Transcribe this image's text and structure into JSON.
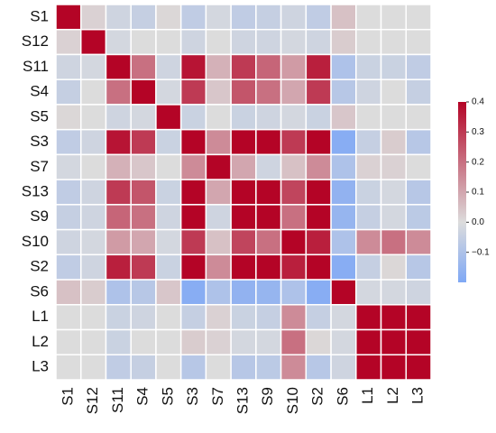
{
  "chart_data": {
    "type": "heatmap",
    "categories": [
      "S1",
      "S12",
      "S11",
      "S4",
      "S5",
      "S3",
      "S7",
      "S13",
      "S9",
      "S10",
      "S2",
      "S6",
      "L1",
      "L2",
      "L3"
    ],
    "values": [
      [
        1,
        0.02,
        -0.03,
        -0.05,
        0.01,
        -0.06,
        -0.02,
        -0.06,
        -0.05,
        -0.03,
        -0.06,
        0.05,
        0,
        0,
        0
      ],
      [
        0.02,
        1,
        -0.02,
        0,
        0,
        -0.03,
        0,
        -0.03,
        -0.03,
        -0.02,
        -0.03,
        0.03,
        0,
        0,
        0
      ],
      [
        -0.03,
        -0.02,
        1,
        0.2,
        -0.03,
        0.37,
        0.08,
        0.3,
        0.22,
        0.12,
        0.35,
        -0.1,
        -0.04,
        -0.04,
        -0.06
      ],
      [
        -0.05,
        0,
        0.2,
        1,
        -0.02,
        0.3,
        0.04,
        0.25,
        0.2,
        0.1,
        0.3,
        -0.08,
        -0.03,
        0,
        -0.05
      ],
      [
        0.01,
        0,
        -0.03,
        -0.02,
        1,
        -0.04,
        0,
        -0.04,
        -0.03,
        -0.02,
        -0.04,
        0.04,
        0,
        0,
        0
      ],
      [
        -0.06,
        -0.03,
        0.37,
        0.3,
        -0.04,
        1,
        0.15,
        0.5,
        0.5,
        0.3,
        0.5,
        -0.18,
        -0.05,
        0.03,
        -0.08
      ],
      [
        -0.02,
        0,
        0.08,
        0.04,
        0,
        0.15,
        1,
        0.1,
        -0.03,
        0.05,
        0.15,
        -0.1,
        0.02,
        0.02,
        0
      ],
      [
        -0.06,
        -0.03,
        0.3,
        0.25,
        -0.04,
        0.5,
        0.1,
        1,
        0.5,
        0.28,
        0.5,
        -0.16,
        -0.04,
        -0.02,
        -0.08
      ],
      [
        -0.05,
        -0.03,
        0.22,
        0.2,
        -0.03,
        0.5,
        -0.03,
        0.5,
        1,
        0.2,
        0.5,
        -0.15,
        -0.05,
        -0.02,
        -0.07
      ],
      [
        -0.03,
        -0.02,
        0.12,
        0.1,
        -0.02,
        0.3,
        0.05,
        0.28,
        0.2,
        1,
        0.35,
        -0.1,
        0.15,
        0.2,
        0.15
      ],
      [
        -0.06,
        -0.03,
        0.35,
        0.3,
        -0.04,
        0.5,
        0.15,
        0.5,
        0.5,
        0.35,
        1,
        -0.18,
        -0.05,
        0.01,
        -0.08
      ],
      [
        0.05,
        0.03,
        -0.1,
        -0.08,
        0.04,
        -0.18,
        -0.1,
        -0.16,
        -0.15,
        -0.1,
        -0.18,
        1,
        -0.02,
        -0.02,
        -0.03
      ],
      [
        0,
        0,
        -0.04,
        -0.03,
        0,
        -0.05,
        0.02,
        -0.04,
        -0.05,
        0.15,
        -0.05,
        -0.02,
        1,
        0.5,
        0.5
      ],
      [
        0,
        0,
        -0.04,
        0,
        0,
        0.03,
        0.02,
        -0.02,
        -0.02,
        0.2,
        0.01,
        -0.02,
        0.5,
        1,
        0.5
      ],
      [
        0,
        0,
        -0.06,
        -0.05,
        0,
        -0.08,
        0,
        -0.08,
        -0.07,
        0.15,
        -0.08,
        -0.03,
        0.5,
        0.5,
        1
      ]
    ],
    "clim": [
      -0.2,
      0.4
    ],
    "center": 0,
    "colors": [
      "#7fa8f5",
      "#dcdcdc",
      "#b40426"
    ],
    "cticks": [
      {
        "value": -0.1,
        "label": "−0.1"
      },
      {
        "value": 0,
        "label": "0.0"
      },
      0.1,
      0.2,
      0.3,
      0.4
    ]
  }
}
